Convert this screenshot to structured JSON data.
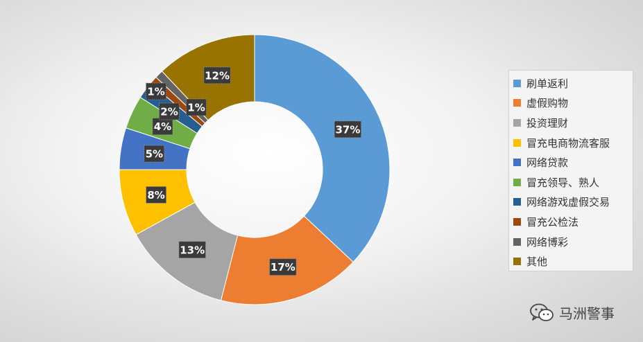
{
  "chart_data": {
    "type": "donut",
    "title": "",
    "categories": [
      "刷单返利",
      "虚假购物",
      "投资理财",
      "冒充电商物流客服",
      "网络贷款",
      "冒充领导、熟人",
      "网络游戏虚假交易",
      "冒充公检法",
      "网络博彩",
      "其他"
    ],
    "values": [
      37,
      17,
      13,
      8,
      5,
      4,
      2,
      1,
      1,
      12
    ],
    "labels": [
      "37%",
      "17%",
      "13%",
      "8%",
      "5%",
      "4%",
      "2%",
      "1%",
      "1%",
      "12%"
    ],
    "colors": [
      "#5B9BD5",
      "#ED7D31",
      "#A5A5A5",
      "#FFC000",
      "#4472C4",
      "#70AD47",
      "#255E91",
      "#9E480E",
      "#636363",
      "#997300"
    ],
    "legend_position": "right"
  },
  "watermark": {
    "text": "马洲警事",
    "icon": "wechat-icon"
  }
}
